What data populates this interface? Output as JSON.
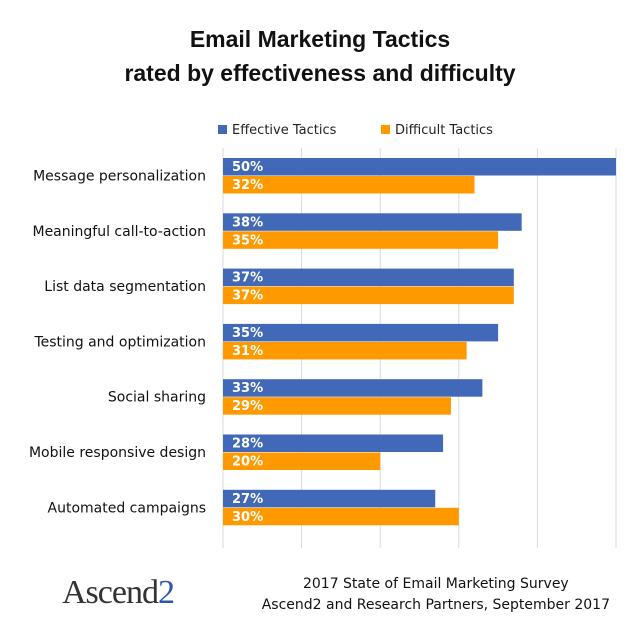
{
  "chart_data": {
    "type": "bar",
    "orientation": "horizontal",
    "title_line1": "Email Marketing Tactics",
    "title_line2": "rated by effectiveness and difficulty",
    "categories": [
      "Message personalization",
      "Meaningful call-to-action",
      "List data segmentation",
      "Testing and optimization",
      "Social sharing",
      "Mobile responsive design",
      "Automated campaigns"
    ],
    "series": [
      {
        "name": "Effective Tactics",
        "color": "#4169b7",
        "values": [
          50,
          38,
          37,
          35,
          33,
          28,
          27
        ],
        "labels": [
          "50%",
          "38%",
          "37%",
          "35%",
          "33%",
          "28%",
          "27%"
        ]
      },
      {
        "name": "Difficult Tactics",
        "color": "#ff9900",
        "values": [
          32,
          35,
          37,
          31,
          29,
          20,
          30
        ],
        "labels": [
          "32%",
          "35%",
          "37%",
          "31%",
          "29%",
          "20%",
          "30%"
        ]
      }
    ],
    "xlim": [
      0,
      50
    ],
    "grid": true,
    "legend": "top"
  },
  "footer": {
    "line1": "2017 State of Email Marketing Survey",
    "line2": "Ascend2 and Research Partners, September 2017"
  },
  "logo": {
    "text": "Ascend",
    "accent": "2"
  }
}
